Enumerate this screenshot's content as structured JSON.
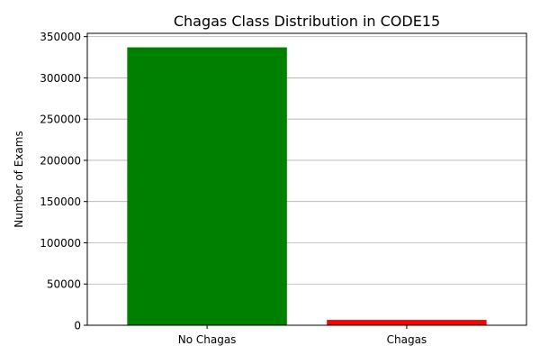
{
  "chart_data": {
    "type": "bar",
    "title": "Chagas Class Distribution in CODE15",
    "xlabel": "",
    "ylabel": "Number of Exams",
    "categories": [
      "No Chagas",
      "Chagas"
    ],
    "values": [
      337000,
      6500
    ],
    "colors": [
      "#008000",
      "#ff0000"
    ],
    "ylim": [
      0,
      354000
    ],
    "yticks": [
      0,
      50000,
      100000,
      150000,
      200000,
      250000,
      300000,
      350000
    ],
    "ytick_labels": [
      "0",
      "50000",
      "100000",
      "150000",
      "200000",
      "250000",
      "300000",
      "350000"
    ],
    "grid": "y-major",
    "legend": "none"
  }
}
